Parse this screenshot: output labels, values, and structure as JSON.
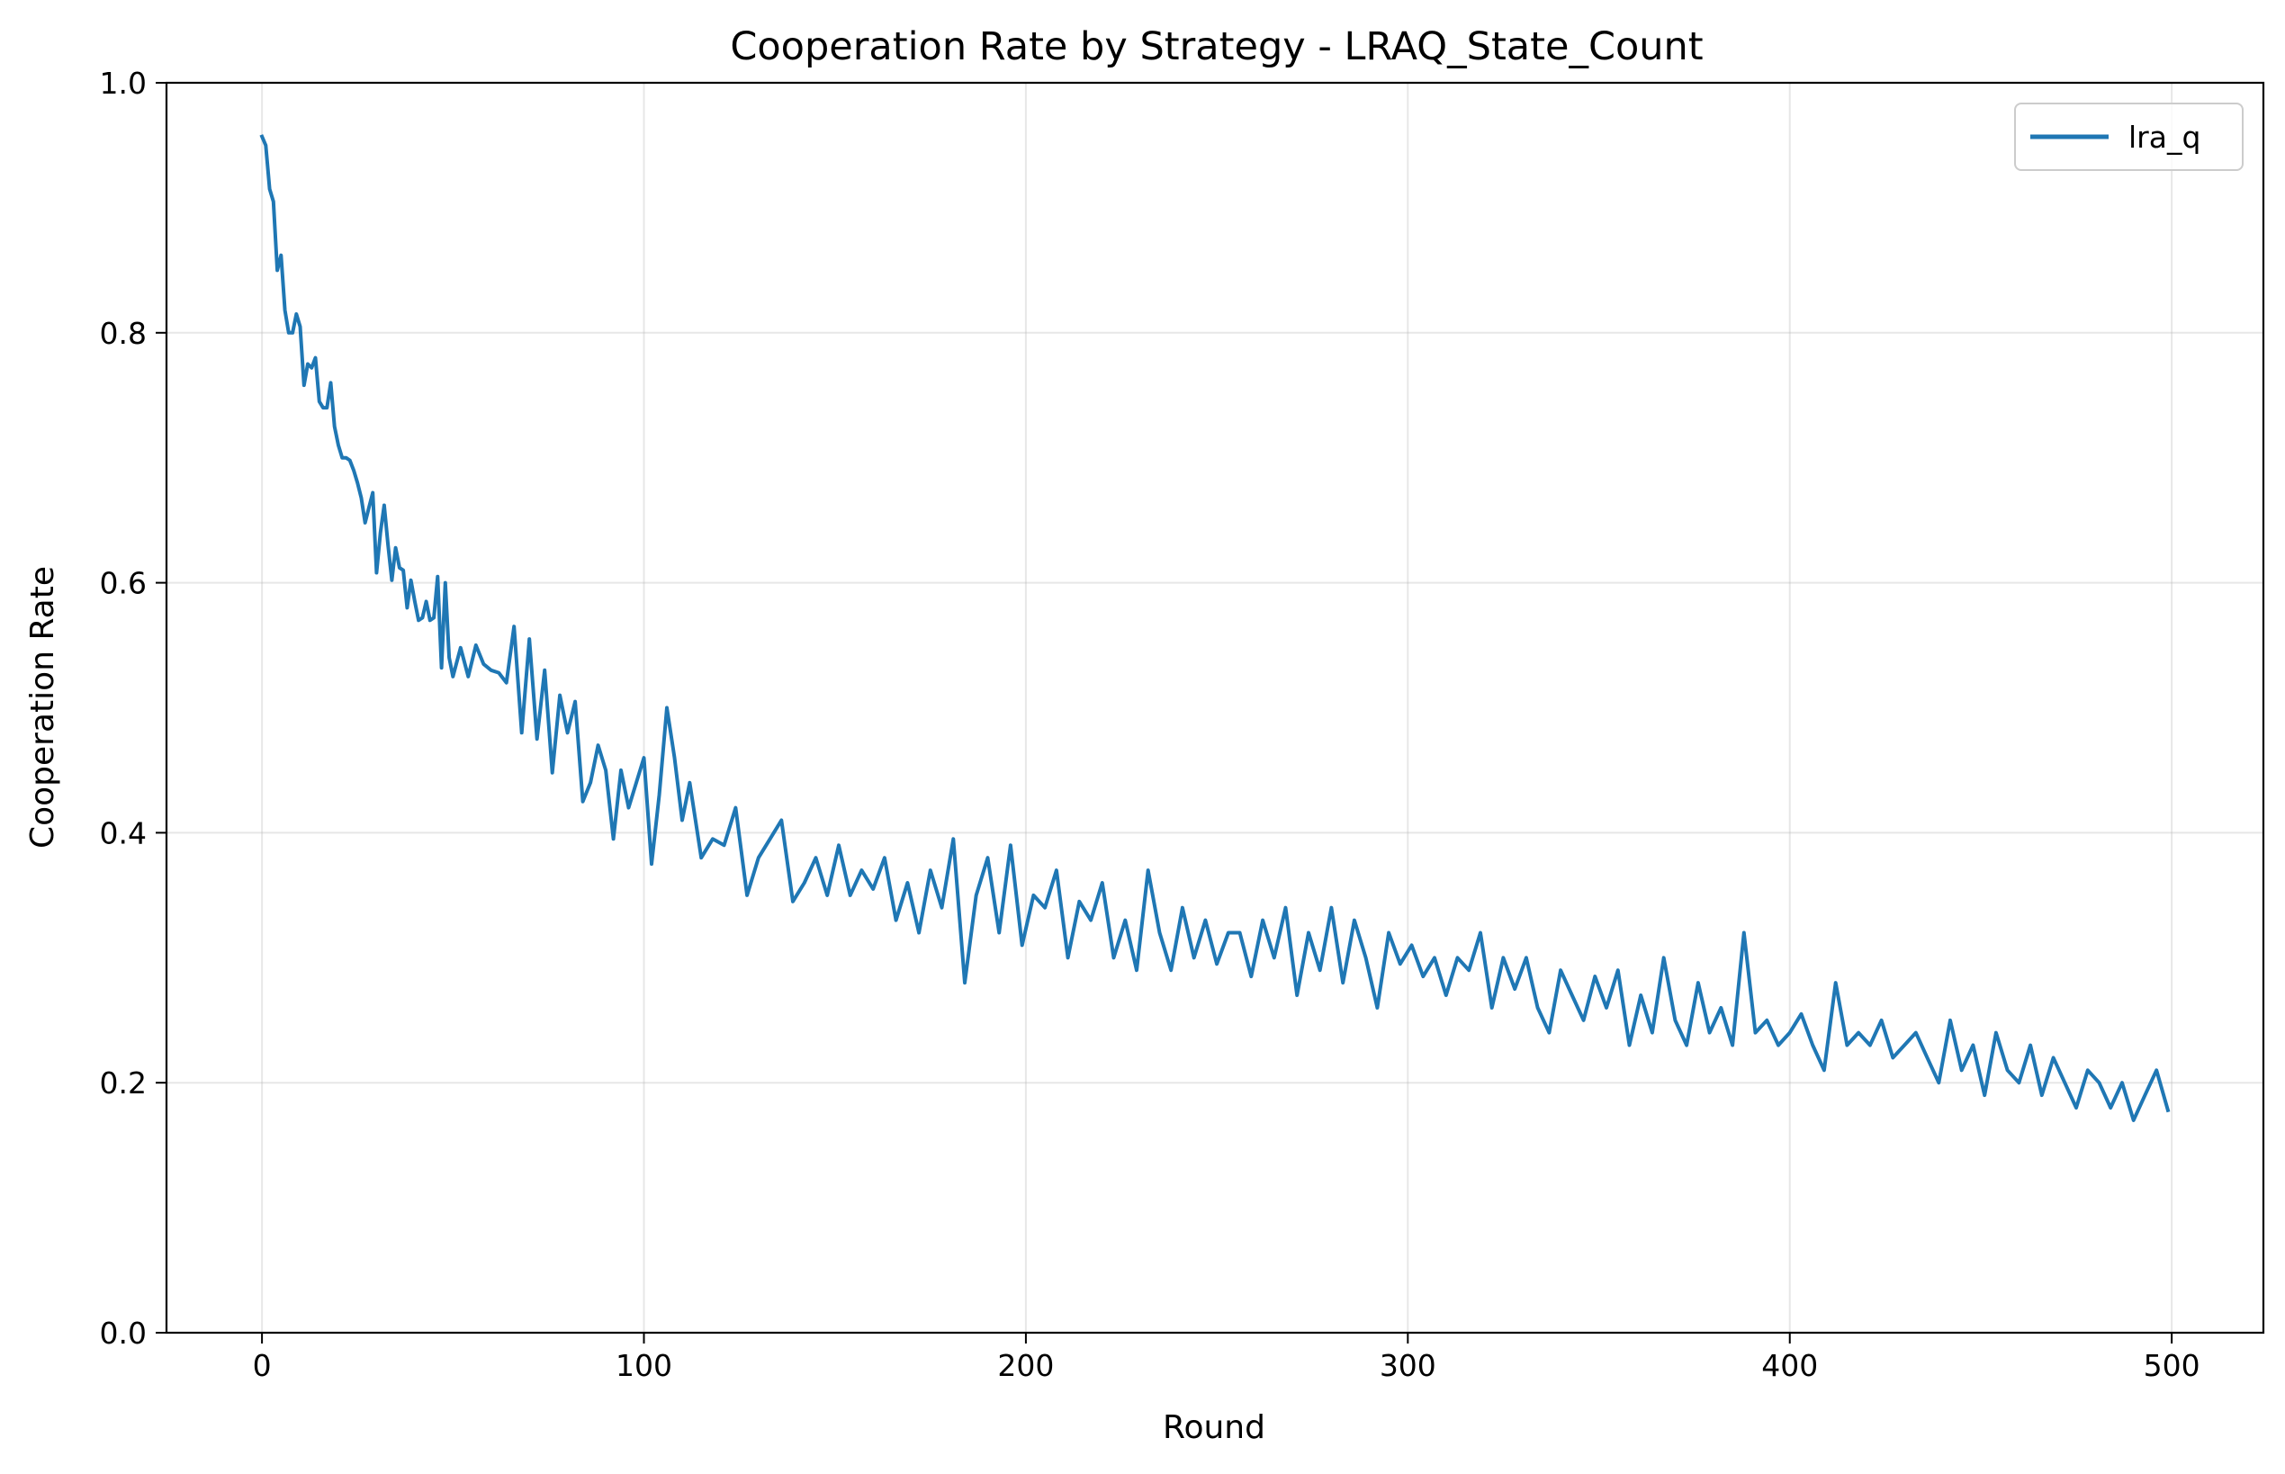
{
  "chart_data": {
    "type": "line",
    "title": "Cooperation Rate by Strategy - LRAQ_State_Count",
    "xlabel": "Round",
    "ylabel": "Cooperation Rate",
    "xlim": [
      -25,
      524
    ],
    "ylim": [
      0.0,
      1.0
    ],
    "xticks": [
      0,
      100,
      200,
      300,
      400,
      500
    ],
    "yticks": [
      0.0,
      0.2,
      0.4,
      0.6,
      0.8,
      1.0
    ],
    "xtick_labels": [
      "0",
      "100",
      "200",
      "300",
      "400",
      "500"
    ],
    "ytick_labels": [
      "0.0",
      "0.2",
      "0.4",
      "0.6",
      "0.8",
      "1.0"
    ],
    "grid": true,
    "legend_position": "top-right",
    "series": [
      {
        "name": "lra_q",
        "color": "#1f77b4",
        "x": [
          0,
          1,
          2,
          3,
          4,
          5,
          6,
          7,
          8,
          9,
          10,
          11,
          12,
          13,
          14,
          15,
          16,
          17,
          18,
          19,
          20,
          21,
          22,
          23,
          24,
          25,
          26,
          27,
          28,
          29,
          30,
          31,
          32,
          33,
          34,
          35,
          36,
          37,
          38,
          39,
          40,
          41,
          42,
          43,
          44,
          45,
          46,
          47,
          48,
          49,
          50,
          52,
          54,
          56,
          58,
          60,
          62,
          64,
          66,
          68,
          70,
          72,
          74,
          76,
          78,
          80,
          82,
          84,
          86,
          88,
          90,
          92,
          94,
          96,
          98,
          100,
          102,
          104,
          106,
          108,
          110,
          112,
          115,
          118,
          121,
          124,
          127,
          130,
          133,
          136,
          139,
          142,
          145,
          148,
          151,
          154,
          157,
          160,
          163,
          166,
          169,
          172,
          175,
          178,
          181,
          184,
          187,
          190,
          193,
          196,
          199,
          202,
          205,
          208,
          211,
          214,
          217,
          220,
          223,
          226,
          229,
          232,
          235,
          238,
          241,
          244,
          247,
          250,
          253,
          256,
          259,
          262,
          265,
          268,
          271,
          274,
          277,
          280,
          283,
          286,
          289,
          292,
          295,
          298,
          301,
          304,
          307,
          310,
          313,
          316,
          319,
          322,
          325,
          328,
          331,
          334,
          337,
          340,
          343,
          346,
          349,
          352,
          355,
          358,
          361,
          364,
          367,
          370,
          373,
          376,
          379,
          382,
          385,
          388,
          391,
          394,
          397,
          400,
          403,
          406,
          409,
          412,
          415,
          418,
          421,
          424,
          427,
          430,
          433,
          436,
          439,
          442,
          445,
          448,
          451,
          454,
          457,
          460,
          463,
          466,
          469,
          472,
          475,
          478,
          481,
          484,
          487,
          490,
          493,
          496,
          499
        ],
        "y": [
          0.957,
          0.95,
          0.915,
          0.905,
          0.85,
          0.862,
          0.818,
          0.8,
          0.8,
          0.815,
          0.805,
          0.758,
          0.775,
          0.772,
          0.78,
          0.745,
          0.74,
          0.74,
          0.76,
          0.725,
          0.71,
          0.7,
          0.7,
          0.698,
          0.69,
          0.68,
          0.668,
          0.648,
          0.66,
          0.672,
          0.608,
          0.64,
          0.662,
          0.63,
          0.602,
          0.628,
          0.612,
          0.61,
          0.58,
          0.602,
          0.585,
          0.57,
          0.572,
          0.585,
          0.57,
          0.572,
          0.605,
          0.532,
          0.6,
          0.54,
          0.525,
          0.548,
          0.525,
          0.55,
          0.535,
          0.53,
          0.528,
          0.52,
          0.565,
          0.48,
          0.555,
          0.475,
          0.53,
          0.448,
          0.51,
          0.48,
          0.505,
          0.425,
          0.44,
          0.47,
          0.45,
          0.395,
          0.45,
          0.42,
          0.44,
          0.46,
          0.375,
          0.43,
          0.5,
          0.46,
          0.41,
          0.44,
          0.38,
          0.395,
          0.39,
          0.42,
          0.35,
          0.38,
          0.395,
          0.41,
          0.345,
          0.36,
          0.38,
          0.35,
          0.39,
          0.35,
          0.37,
          0.355,
          0.38,
          0.33,
          0.36,
          0.32,
          0.37,
          0.34,
          0.395,
          0.28,
          0.35,
          0.38,
          0.32,
          0.39,
          0.31,
          0.35,
          0.34,
          0.37,
          0.3,
          0.345,
          0.33,
          0.36,
          0.3,
          0.33,
          0.29,
          0.37,
          0.32,
          0.29,
          0.34,
          0.3,
          0.33,
          0.295,
          0.32,
          0.32,
          0.285,
          0.33,
          0.3,
          0.34,
          0.27,
          0.32,
          0.29,
          0.34,
          0.28,
          0.33,
          0.3,
          0.26,
          0.32,
          0.295,
          0.31,
          0.285,
          0.3,
          0.27,
          0.3,
          0.29,
          0.32,
          0.26,
          0.3,
          0.275,
          0.3,
          0.26,
          0.24,
          0.29,
          0.27,
          0.25,
          0.285,
          0.26,
          0.29,
          0.23,
          0.27,
          0.24,
          0.3,
          0.25,
          0.23,
          0.28,
          0.24,
          0.26,
          0.23,
          0.32,
          0.24,
          0.25,
          0.23,
          0.24,
          0.255,
          0.23,
          0.21,
          0.28,
          0.23,
          0.24,
          0.23,
          0.25,
          0.22,
          0.23,
          0.24,
          0.22,
          0.2,
          0.25,
          0.21,
          0.23,
          0.19,
          0.24,
          0.21,
          0.2,
          0.23,
          0.19,
          0.22,
          0.2,
          0.18,
          0.21,
          0.2,
          0.18,
          0.2,
          0.17,
          0.19,
          0.21,
          0.178
        ]
      }
    ]
  }
}
